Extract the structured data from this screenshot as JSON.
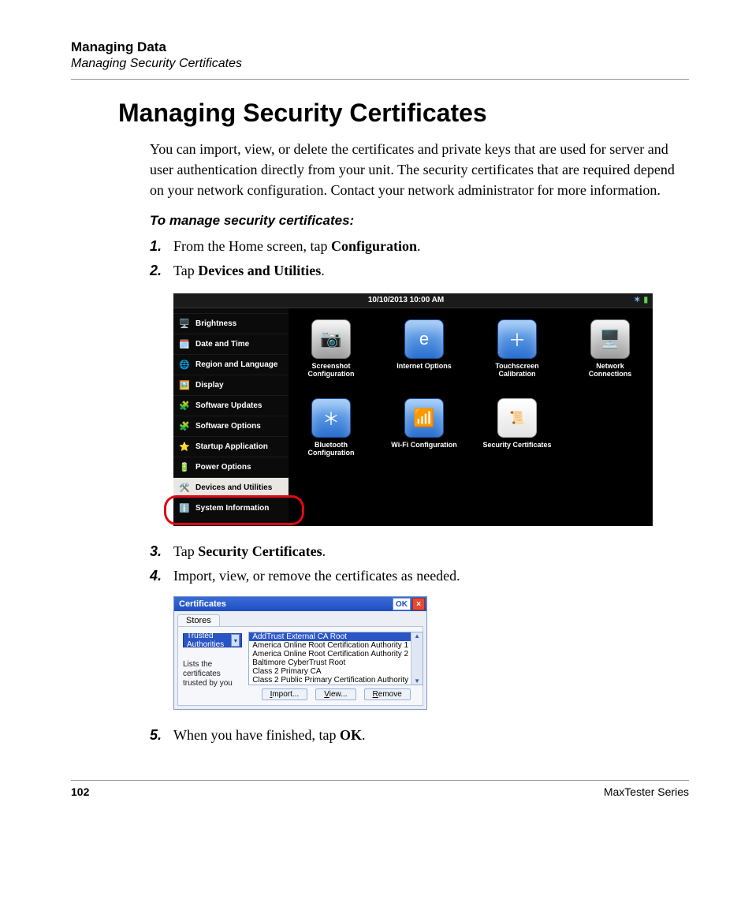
{
  "header": {
    "chapter": "Managing Data",
    "section": "Managing Security Certificates"
  },
  "title": "Managing Security Certificates",
  "intro": "You can import, view, or delete the certificates and private keys that are used for server and user authentication directly from your unit. The security certificates that are required depend on your network configuration. Contact your network administrator for more information.",
  "subhead": "To manage security certificates:",
  "steps": {
    "s1_pre": "From the Home screen, tap ",
    "s1_b": "Configuration",
    "s1_post": ".",
    "s2_pre": "Tap ",
    "s2_b": "Devices and Utilities",
    "s2_post": ".",
    "s3_pre": "Tap ",
    "s3_b": "Security Certificates",
    "s3_post": ".",
    "s4": "Import, view, or remove the certificates as needed.",
    "s5_pre": "When you have finished, tap ",
    "s5_b": "OK",
    "s5_post": "."
  },
  "device": {
    "clock": "10/10/2013 10:00 AM",
    "status_icons": {
      "bt": "✶",
      "battery": "▮"
    },
    "sidebar": [
      {
        "icon": "🖥️",
        "label": "Brightness"
      },
      {
        "icon": "🗓️",
        "label": "Date and Time"
      },
      {
        "icon": "🌐",
        "label": "Region and Language"
      },
      {
        "icon": "🖼️",
        "label": "Display"
      },
      {
        "icon": "🧩",
        "label": "Software Updates"
      },
      {
        "icon": "🧩",
        "label": "Software Options"
      },
      {
        "icon": "⭐",
        "label": "Startup Application"
      },
      {
        "icon": "🔋",
        "label": "Power Options"
      },
      {
        "icon": "🛠️",
        "label": "Devices and Utilities",
        "selected": true
      },
      {
        "icon": "ℹ️",
        "label": "System Information"
      }
    ],
    "tiles_row1": [
      {
        "style": "silver",
        "glyph": "📷",
        "label": "Screenshot Configuration"
      },
      {
        "style": "blue",
        "glyph": "e",
        "label": "Internet Options"
      },
      {
        "style": "blue",
        "glyph": "＋",
        "label": "Touchscreen Calibration"
      },
      {
        "style": "silver",
        "glyph": "🖥️",
        "label": "Network Connections"
      }
    ],
    "tiles_row2": [
      {
        "style": "blue",
        "glyph": "＊",
        "label": "Bluetooth Configuration"
      },
      {
        "style": "blue",
        "glyph": "📶",
        "label": "Wi-Fi Configuration"
      },
      {
        "style": "paper",
        "glyph": "📜",
        "label": "Security Certificates"
      }
    ]
  },
  "cert": {
    "title": "Certificates",
    "ok": "OK",
    "close": "×",
    "tab": "Stores",
    "combo": "Trusted Authorities",
    "left_text": "Lists the certificates trusted by you",
    "list": [
      "AddTrust External CA Root",
      "America Online Root Certification Authority 1",
      "America Online Root Certification Authority 2",
      "Baltimore CyberTrust Root",
      "Class 2 Primary CA",
      "Class 2 Public Primary Certification Authority"
    ],
    "buttons": {
      "import": "Import...",
      "view": "View...",
      "remove": "Remove"
    }
  },
  "footer": {
    "page": "102",
    "series": "MaxTester Series"
  },
  "colors": {
    "accent_blue": "#2a6fce",
    "highlight_red": "#e30613",
    "win_title_blue": "#1f4fbf"
  }
}
